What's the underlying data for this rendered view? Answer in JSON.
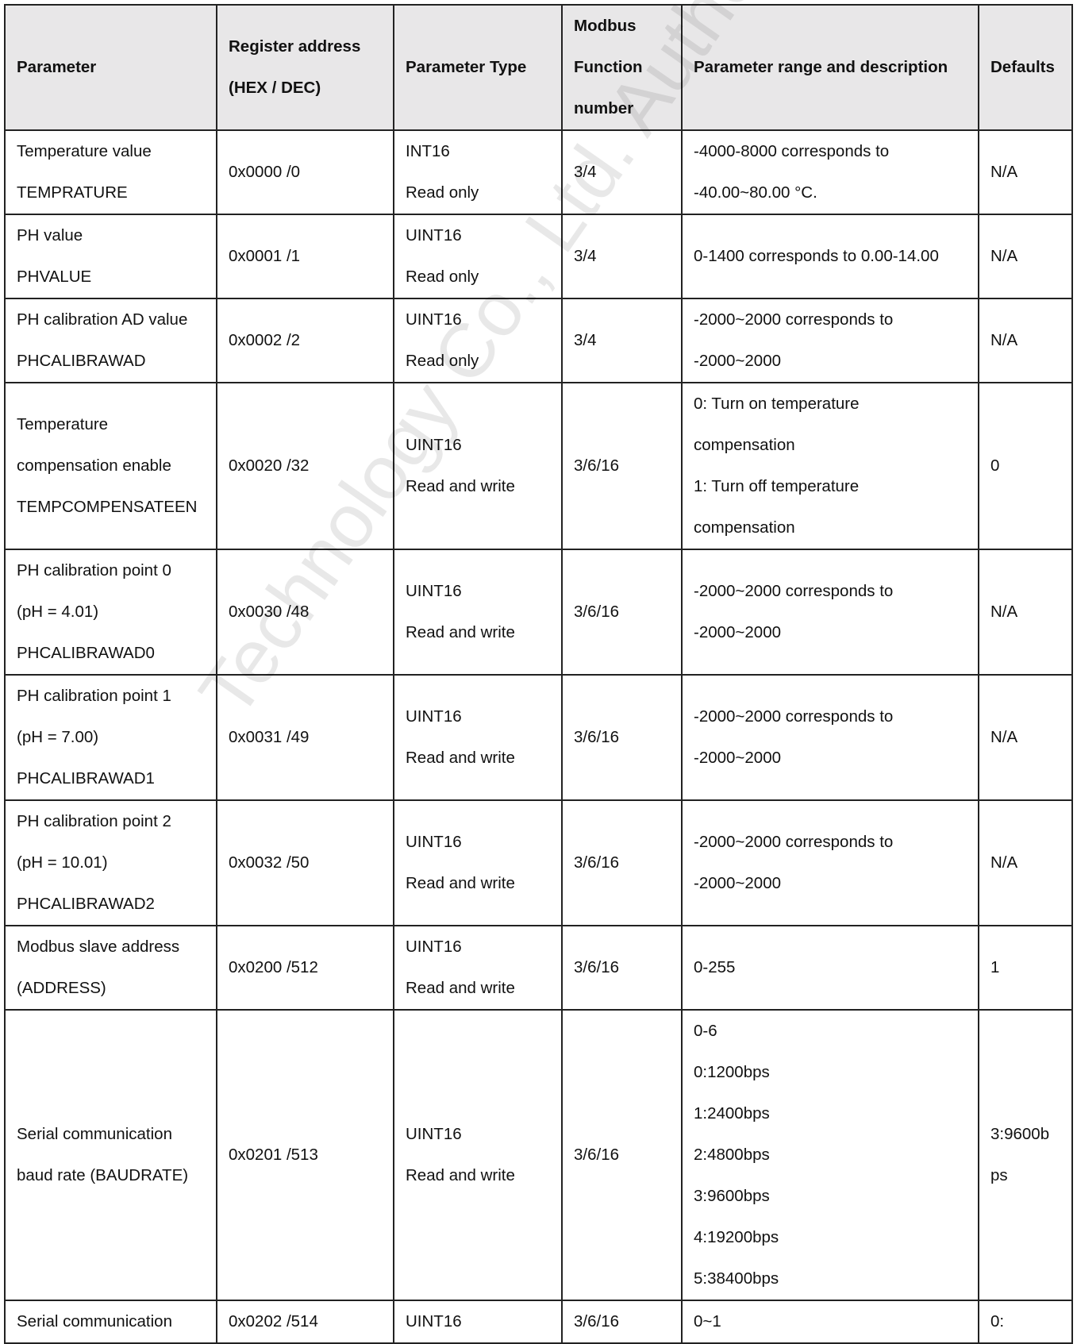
{
  "headers": [
    [
      "Parameter"
    ],
    [
      "Register address",
      "(HEX / DEC)"
    ],
    [
      "Parameter Type"
    ],
    [
      "Modbus",
      "Function",
      "number"
    ],
    [
      "Parameter range and description"
    ],
    [
      "Defaults"
    ]
  ],
  "rows": [
    {
      "param": [
        "Temperature value",
        "TEMPRATURE"
      ],
      "addr": "0x0000 /0",
      "type": [
        "INT16",
        "Read only"
      ],
      "func": "3/4",
      "range": [
        "-4000-8000 corresponds to",
        "-40.00~80.00 °C."
      ],
      "def": [
        "N/A"
      ]
    },
    {
      "param": [
        "PH value",
        "PHVALUE"
      ],
      "addr": "0x0001 /1",
      "type": [
        "UINT16",
        "Read only"
      ],
      "func": "3/4",
      "range": [
        "0-1400 corresponds to 0.00-14.00"
      ],
      "def": [
        "N/A"
      ]
    },
    {
      "param": [
        "PH calibration AD value",
        "PHCALIBRAWAD"
      ],
      "addr": "0x0002 /2",
      "type": [
        "UINT16",
        "Read only"
      ],
      "func": "3/4",
      "range": [
        "-2000~2000 corresponds to",
        "-2000~2000"
      ],
      "def": [
        "N/A"
      ]
    },
    {
      "param": [
        "Temperature",
        "compensation enable",
        "TEMPCOMPENSATEEN"
      ],
      "addr": "0x0020 /32",
      "type": [
        "UINT16",
        "Read and write"
      ],
      "func": "3/6/16",
      "range": [
        "0: Turn on temperature",
        "compensation",
        "1: Turn off temperature",
        "compensation"
      ],
      "def": [
        "0"
      ]
    },
    {
      "param": [
        "PH calibration point 0",
        "(pH = 4.01)",
        "PHCALIBRAWAD0"
      ],
      "addr": "0x0030 /48",
      "type": [
        "UINT16",
        "Read and write"
      ],
      "func": "3/6/16",
      "range": [
        "-2000~2000 corresponds to",
        "-2000~2000"
      ],
      "def": [
        "N/A"
      ]
    },
    {
      "param": [
        "PH calibration point 1",
        "(pH = 7.00)",
        "PHCALIBRAWAD1"
      ],
      "addr": "0x0031 /49",
      "type": [
        "UINT16",
        "Read and write"
      ],
      "func": "3/6/16",
      "range": [
        "-2000~2000 corresponds to",
        "-2000~2000"
      ],
      "def": [
        "N/A"
      ]
    },
    {
      "param": [
        "PH calibration point 2",
        "(pH = 10.01)",
        "PHCALIBRAWAD2"
      ],
      "addr": "0x0032 /50",
      "type": [
        "UINT16",
        "Read and write"
      ],
      "func": "3/6/16",
      "range": [
        "-2000~2000 corresponds to",
        "-2000~2000"
      ],
      "def": [
        "N/A"
      ]
    },
    {
      "param": [
        "Modbus slave address",
        "(ADDRESS)"
      ],
      "addr": "0x0200 /512",
      "type": [
        "UINT16",
        "Read and write"
      ],
      "func": "3/6/16",
      "range": [
        "0-255"
      ],
      "def": [
        "1"
      ]
    },
    {
      "param": [
        "Serial communication",
        "baud rate (BAUDRATE)"
      ],
      "addr": "0x0201 /513",
      "type": [
        "UINT16",
        "Read and write"
      ],
      "func": "3/6/16",
      "range": [
        "0-6",
        "0:1200bps",
        "1:2400bps",
        "2:4800bps",
        "3:9600bps",
        "4:19200bps",
        "5:38400bps"
      ],
      "def": [
        "3:9600b",
        "ps"
      ]
    },
    {
      "param": [
        "Serial communication"
      ],
      "addr": "0x0202 /514",
      "type": [
        "UINT16"
      ],
      "func": "3/6/16",
      "range": [
        "0~1"
      ],
      "def": [
        "0:"
      ]
    }
  ],
  "watermark": "Technology Co., Ltd. Authorised"
}
